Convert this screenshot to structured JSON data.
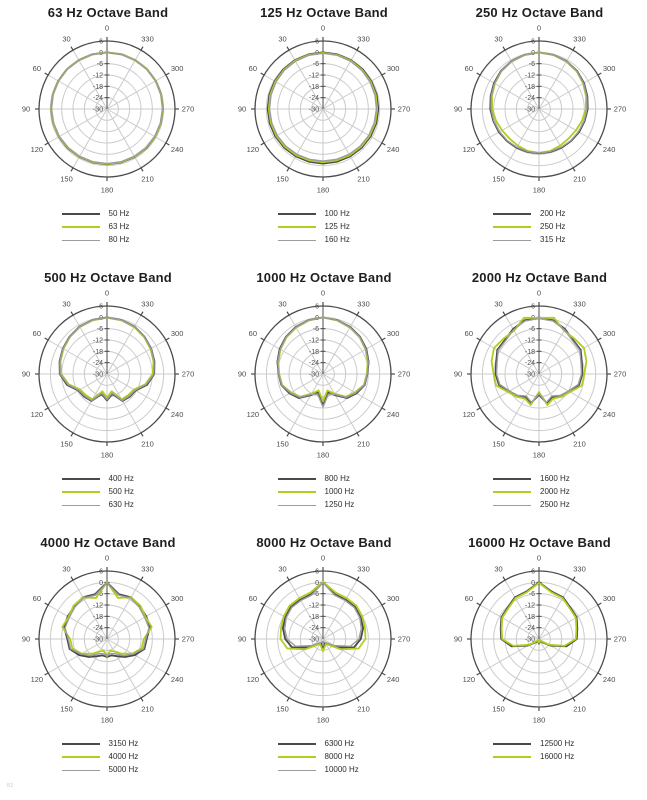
{
  "page": {
    "corner_mark": "B2"
  },
  "colors": {
    "dark": "#4a4a4a",
    "lime": "#b5cc1f",
    "gray": "#9c9c9c",
    "grid": "#cbcbcb",
    "axis": "#4b4b4b",
    "label": "#4b4b4b",
    "title": "#1f1f1f",
    "background": "#ffffff"
  },
  "chart_data": {
    "type": "polar-line",
    "radial_ticks": [
      "6",
      "0",
      "-6",
      "-12",
      "-18",
      "-24",
      "-30"
    ],
    "radial_range_db": [
      -30,
      6
    ],
    "angle_labels": [
      "0",
      "30",
      "60",
      "90",
      "120",
      "150",
      "180",
      "210",
      "240",
      "270",
      "300",
      "330"
    ],
    "angle_direction": "counterclockwise-from-top",
    "angles_deg": [
      0,
      15,
      30,
      45,
      60,
      75,
      90,
      105,
      120,
      135,
      150,
      165,
      180,
      195,
      210,
      225,
      240,
      255,
      270,
      285,
      300,
      315,
      330,
      345
    ],
    "plots": [
      {
        "title": "63 Hz Octave Band",
        "series": [
          {
            "name": "50 Hz",
            "color": "dark",
            "w": 1.8,
            "values": [
              0,
              0,
              -0.1,
              -0.1,
              -0.2,
              -0.3,
              -0.4,
              -0.5,
              -0.6,
              -0.6,
              -0.7,
              -0.7,
              -0.7,
              -0.7,
              -0.7,
              -0.6,
              -0.6,
              -0.5,
              -0.4,
              -0.3,
              -0.2,
              -0.1,
              -0.1,
              0
            ]
          },
          {
            "name": "63 Hz",
            "color": "lime",
            "w": 1.8,
            "values": [
              -0.1,
              -0.1,
              -0.2,
              -0.2,
              -0.3,
              -0.4,
              -0.5,
              -0.6,
              -0.7,
              -0.8,
              -0.9,
              -0.9,
              -0.9,
              -0.9,
              -0.9,
              -0.8,
              -0.7,
              -0.6,
              -0.5,
              -0.4,
              -0.3,
              -0.2,
              -0.2,
              -0.1
            ]
          },
          {
            "name": "80 Hz",
            "color": "gray",
            "w": 1.4,
            "values": [
              -0.2,
              -0.2,
              -0.3,
              -0.3,
              -0.4,
              -0.5,
              -0.6,
              -0.8,
              -0.9,
              -1,
              -1.1,
              -1.1,
              -1.1,
              -1.1,
              -1.1,
              -1,
              -0.9,
              -0.8,
              -0.6,
              -0.5,
              -0.4,
              -0.3,
              -0.3,
              -0.2
            ]
          }
        ]
      },
      {
        "title": "125 Hz Octave Band",
        "series": [
          {
            "name": "100 Hz",
            "color": "dark",
            "w": 1.8,
            "values": [
              0,
              -0.1,
              -0.2,
              -0.3,
              -0.5,
              -0.6,
              -0.7,
              -0.8,
              -0.9,
              -1,
              -1.1,
              -1.1,
              -1.1,
              -1.1,
              -1.1,
              -1,
              -0.9,
              -0.8,
              -0.7,
              -0.6,
              -0.5,
              -0.3,
              -0.2,
              -0.1
            ]
          },
          {
            "name": "125 Hz",
            "color": "lime",
            "w": 1.8,
            "values": [
              -0.3,
              -0.4,
              -0.5,
              -0.7,
              -0.9,
              -1.1,
              -1.3,
              -1.4,
              -1.5,
              -1.6,
              -1.7,
              -1.8,
              -1.8,
              -1.8,
              -1.7,
              -1.6,
              -1.5,
              -1.4,
              -1.3,
              -1.1,
              -0.9,
              -0.7,
              -0.5,
              -0.4
            ]
          },
          {
            "name": "160 Hz",
            "color": "gray",
            "w": 1.4,
            "values": [
              -0.5,
              -0.6,
              -0.8,
              -1,
              -1.3,
              -1.5,
              -1.7,
              -1.9,
              -2,
              -2.2,
              -2.3,
              -2.4,
              -2.4,
              -2.4,
              -2.3,
              -2.2,
              -2,
              -1.9,
              -1.7,
              -1.5,
              -1.3,
              -1,
              -0.8,
              -0.6
            ]
          }
        ]
      },
      {
        "title": "250 Hz Octave Band",
        "series": [
          {
            "name": "200 Hz",
            "color": "dark",
            "w": 1.8,
            "values": [
              0,
              -0.3,
              -0.8,
              -1.5,
              -2.5,
              -3.5,
              -4.2,
              -5,
              -5.5,
              -6,
              -6.3,
              -6.5,
              -6.5,
              -6.5,
              -6.3,
              -6,
              -5.5,
              -5,
              -4.2,
              -3.5,
              -2.5,
              -1.5,
              -0.8,
              -0.3
            ]
          },
          {
            "name": "250 Hz",
            "color": "lime",
            "w": 1.8,
            "values": [
              0,
              -0.4,
              -1,
              -1.8,
              -3,
              -4.2,
              -5.2,
              -6.4,
              -7.4,
              -7.9,
              -7.6,
              -7,
              -6.8,
              -7,
              -7.6,
              -7.9,
              -7.4,
              -6.4,
              -5.2,
              -4.2,
              -3,
              -1.8,
              -1,
              -0.4
            ]
          },
          {
            "name": "315 Hz",
            "color": "gray",
            "w": 1.4,
            "values": [
              -0.2,
              -0.5,
              -1,
              -1.7,
              -2.8,
              -3.8,
              -4.6,
              -5.3,
              -5.9,
              -6.3,
              -6.6,
              -6.7,
              -6.7,
              -6.7,
              -6.6,
              -6.3,
              -5.9,
              -5.3,
              -4.6,
              -3.8,
              -2.8,
              -1.7,
              -1,
              -0.5
            ]
          }
        ]
      },
      {
        "title": "500 Hz Octave Band",
        "series": [
          {
            "name": "400 Hz",
            "color": "dark",
            "w": 1.8,
            "values": [
              -0.1,
              -0.4,
              -1,
              -2,
              -3,
              -4,
              -5,
              -8,
              -12.5,
              -13,
              -13.5,
              -19,
              -16,
              -19,
              -13.5,
              -13,
              -12.5,
              -8,
              -5,
              -4,
              -3,
              -2,
              -1,
              -0.4
            ]
          },
          {
            "name": "500 Hz",
            "color": "lime",
            "w": 1.8,
            "values": [
              -0.2,
              -0.6,
              -1.3,
              -2.3,
              -3.4,
              -4.5,
              -5.8,
              -9,
              -13.5,
              -14.2,
              -14.5,
              -20.5,
              -17.5,
              -20.5,
              -14.5,
              -14.2,
              -13.5,
              -9,
              -5.8,
              -4.5,
              -3.4,
              -2.3,
              -1.3,
              -0.6
            ]
          },
          {
            "name": "630 Hz",
            "color": "gray",
            "w": 1.4,
            "values": [
              -0.1,
              -0.5,
              -1.1,
              -2.1,
              -3.1,
              -4.2,
              -5.2,
              -8.5,
              -12.8,
              -13.4,
              -13.8,
              -19.5,
              -16.5,
              -19.5,
              -13.8,
              -13.4,
              -12.8,
              -8.5,
              -5.2,
              -4.2,
              -3.1,
              -2.1,
              -1.1,
              -0.5
            ]
          }
        ]
      },
      {
        "title": "1000 Hz Octave Band",
        "series": [
          {
            "name": "800 Hz",
            "color": "dark",
            "w": 1.8,
            "values": [
              0,
              -0.5,
              -1.2,
              -2.2,
              -3.5,
              -5,
              -6.5,
              -7.2,
              -9.5,
              -12,
              -17,
              -20,
              -14,
              -20,
              -17,
              -12,
              -9.5,
              -7.2,
              -6.5,
              -5,
              -3.5,
              -2.2,
              -1.2,
              -0.5
            ]
          },
          {
            "name": "1000 Hz",
            "color": "lime",
            "w": 1.8,
            "values": [
              0,
              -0.7,
              -1.6,
              -2.6,
              -4,
              -5.5,
              -6.8,
              -7.6,
              -10.5,
              -13,
              -18,
              -21,
              -15.5,
              -21,
              -18,
              -13,
              -10.5,
              -7.6,
              -6.8,
              -5.5,
              -4,
              -2.6,
              -1.6,
              -0.7
            ]
          },
          {
            "name": "1250 Hz",
            "color": "gray",
            "w": 1.4,
            "values": [
              -0.2,
              -0.6,
              -1.4,
              -2.4,
              -3.8,
              -5.2,
              -6.6,
              -7.4,
              -10,
              -12.5,
              -17.5,
              -19,
              -12.5,
              -19,
              -17.5,
              -12.5,
              -10,
              -7.4,
              -6.6,
              -5.2,
              -3.8,
              -2.4,
              -1.4,
              -0.6
            ]
          }
        ]
      },
      {
        "title": "2000 Hz Octave Band",
        "series": [
          {
            "name": "1600 Hz",
            "color": "dark",
            "w": 1.8,
            "values": [
              -0.5,
              -0.6,
              -2.5,
              -4.5,
              -4.5,
              -6.5,
              -7,
              -8,
              -11.5,
              -13.5,
              -16,
              -14,
              -19,
              -14,
              -16,
              -13.5,
              -11.5,
              -8,
              -7,
              -6.5,
              -4.5,
              -4.5,
              -2.5,
              -0.6
            ]
          },
          {
            "name": "2000 Hz",
            "color": "lime",
            "w": 1.8,
            "values": [
              -0.3,
              0.8,
              -3.5,
              -3.5,
              -2.5,
              -4,
              -6,
              -6.5,
              -11,
              -13,
              -15,
              -13,
              -20.5,
              -13,
              -15,
              -13,
              -11,
              -6.5,
              -6,
              -4,
              -2.5,
              -3.5,
              -3.5,
              0.8
            ]
          },
          {
            "name": "2500 Hz",
            "color": "gray",
            "w": 1.4,
            "values": [
              -0.6,
              -1,
              -3,
              -5,
              -5,
              -7,
              -7.5,
              -8.5,
              -12,
              -14,
              -16.5,
              -14.5,
              -19.5,
              -14.5,
              -16.5,
              -14,
              -12,
              -8.5,
              -7.5,
              -7,
              -5,
              -5,
              -3,
              -1
            ]
          }
        ]
      },
      {
        "title": "4000 Hz Octave Band",
        "series": [
          {
            "name": "3150 Hz",
            "color": "dark",
            "w": 1.8,
            "values": [
              0,
              -5.5,
              -4.5,
              -5.5,
              -6,
              -6.5,
              -9,
              -9.5,
              -13,
              -16.5,
              -19.5,
              -21,
              -20.5,
              -21,
              -19.5,
              -16.5,
              -13,
              -9.5,
              -9,
              -6.5,
              -6,
              -5.5,
              -4.5,
              -5.5
            ]
          },
          {
            "name": "4000 Hz",
            "color": "lime",
            "w": 1.8,
            "values": [
              0,
              -7.5,
              -4.5,
              -5,
              -6.5,
              -5.5,
              -10.5,
              -11,
              -14.5,
              -19,
              -22.5,
              -23.5,
              -21,
              -23.5,
              -22.5,
              -19,
              -14.5,
              -11,
              -10.5,
              -5.5,
              -6.5,
              -5,
              -4.5,
              -7.5
            ]
          },
          {
            "name": "5000 Hz",
            "color": "gray",
            "w": 1.4,
            "values": [
              -0.3,
              -6,
              -5,
              -6,
              -7,
              -7,
              -9.5,
              -10,
              -14,
              -17.5,
              -21,
              -22,
              -21.5,
              -22,
              -21,
              -17.5,
              -14,
              -10,
              -9.5,
              -7,
              -7,
              -6,
              -5,
              -6
            ]
          }
        ]
      },
      {
        "title": "8000 Hz Octave Band",
        "series": [
          {
            "name": "6300 Hz",
            "color": "dark",
            "w": 1.8,
            "values": [
              0,
              -5.5,
              -6,
              -6,
              -7,
              -8,
              -10,
              -13,
              -21,
              -26,
              -27.5,
              -27.5,
              -25.5,
              -27.5,
              -27.5,
              -26,
              -21,
              -13,
              -10,
              -8,
              -7,
              -6,
              -6,
              -5.5
            ]
          },
          {
            "name": "8000 Hz",
            "color": "lime",
            "w": 1.8,
            "values": [
              0.3,
              -4.5,
              -5,
              -5,
              -6,
              -7,
              -7.5,
              -10.5,
              -19,
              -25.5,
              -27,
              -26,
              -23.5,
              -26,
              -27,
              -25.5,
              -19,
              -10.5,
              -7.5,
              -7,
              -6,
              -5,
              -5,
              -4.5
            ]
          },
          {
            "name": "10000 Hz",
            "color": "gray",
            "w": 1.4,
            "values": [
              -0.2,
              -6,
              -6.5,
              -6.5,
              -7.5,
              -9,
              -11,
              -15,
              -23,
              -27,
              -28,
              -28.5,
              -26.5,
              -28.5,
              -28,
              -27,
              -23,
              -15,
              -11,
              -9,
              -7.5,
              -6.5,
              -6.5,
              -6
            ]
          }
        ]
      },
      {
        "title": "16000 Hz Octave Band",
        "series": [
          {
            "name": "12500 Hz",
            "color": "dark",
            "w": 1.8,
            "values": [
              0,
              -4,
              -4.5,
              -6.5,
              -7,
              -9,
              -10,
              -15,
              -23,
              -27.5,
              -29,
              -28.5,
              -27.5,
              -28.5,
              -29,
              -27.5,
              -23,
              -15,
              -10,
              -9,
              -7,
              -6.5,
              -4.5,
              -4
            ]
          },
          {
            "name": "16000 Hz",
            "color": "lime",
            "w": 1.8,
            "values": [
              -0.3,
              -4.5,
              -5,
              -7,
              -7.5,
              -9.5,
              -10.5,
              -16,
              -24,
              -28.5,
              -29.5,
              -29,
              -28,
              -29,
              -29.5,
              -28.5,
              -24,
              -16,
              -10.5,
              -9.5,
              -7.5,
              -7,
              -5,
              -4.5
            ]
          }
        ]
      }
    ]
  }
}
